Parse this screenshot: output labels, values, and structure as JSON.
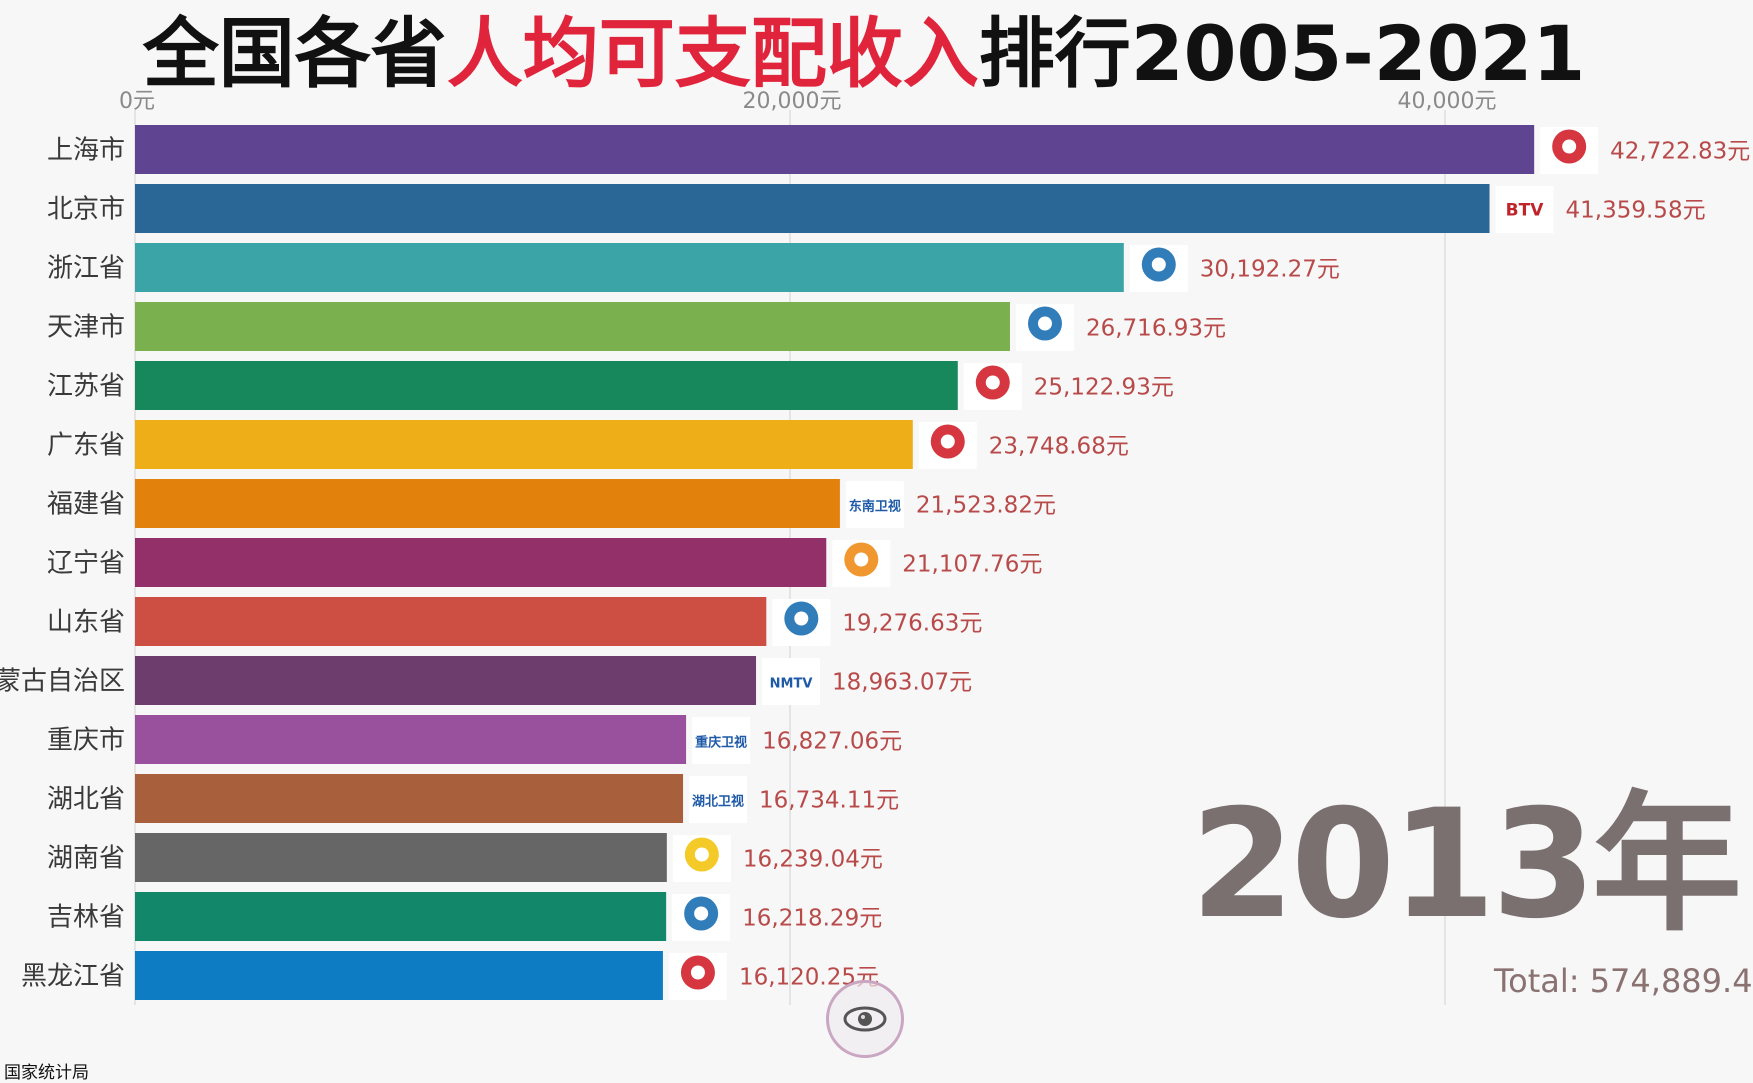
{
  "title": {
    "prefix": "全国各省",
    "highlight": "人均可支配收入",
    "suffix": "排行2005-2021"
  },
  "year_label": "2013年",
  "total_label": "Total: 574,889.4",
  "source": "国家统计局",
  "colors": {
    "title_highlight": "#e0243b",
    "value_text": "#b84a4a",
    "year_text": "#7a7070"
  },
  "chart_data": {
    "type": "bar",
    "orientation": "horizontal",
    "x_ticks": [
      {
        "value": 0,
        "label": "0元"
      },
      {
        "value": 20000,
        "label": "20,000元"
      },
      {
        "value": 40000,
        "label": "40,000元"
      }
    ],
    "xlim": [
      0,
      47500
    ],
    "grid": true,
    "categories": [
      "上海市",
      "北京市",
      "浙江省",
      "天津市",
      "江苏省",
      "广东省",
      "福建省",
      "辽宁省",
      "山东省",
      "蒙古自治区",
      "重庆市",
      "湖北省",
      "湖南省",
      "吉林省",
      "黑龙江省"
    ],
    "values": [
      42722.83,
      41359.58,
      30192.27,
      26716.93,
      25122.93,
      23748.68,
      21523.82,
      21107.76,
      19276.63,
      18963.07,
      16827.06,
      16734.11,
      16239.04,
      16218.29,
      16120.25
    ],
    "value_labels": [
      "42,722.83元",
      "41,359.58元",
      "30,192.27元",
      "26,716.93元",
      "25,122.93元",
      "23,748.68元",
      "21,523.82元",
      "21,107.76元",
      "19,276.63元",
      "18,963.07元",
      "16,827.06元",
      "16,734.11元",
      "16,239.04元",
      "16,218.29元",
      "16,120.25元"
    ],
    "bar_colors": [
      "#5f4591",
      "#2a6796",
      "#3ba4a6",
      "#7ab04e",
      "#16885c",
      "#edae17",
      "#e2810b",
      "#943069",
      "#cd4f43",
      "#6d3d6d",
      "#9a519d",
      "#a85f3b",
      "#666666",
      "#13876a",
      "#0d7cc3"
    ],
    "logos": [
      "dragon-tv-logo",
      "btv-logo",
      "zhejiang-tv-logo",
      "tianjin-tv-logo",
      "jiangsu-tv-logo",
      "guangdong-tv-logo",
      "southeast-tv-logo",
      "liaoning-tv-logo",
      "shandong-tv-logo",
      "nmtv-logo",
      "chongqing-tv-logo",
      "hubei-tv-logo",
      "hunan-tv-logo",
      "jilin-tv-logo",
      "heilongjiang-tv-logo"
    ],
    "logo_texts": [
      "",
      "BTV",
      "",
      "",
      "",
      "",
      "东南卫视",
      "",
      "",
      "NMTV",
      "重庆卫视",
      "湖北卫视",
      "",
      "",
      ""
    ]
  }
}
